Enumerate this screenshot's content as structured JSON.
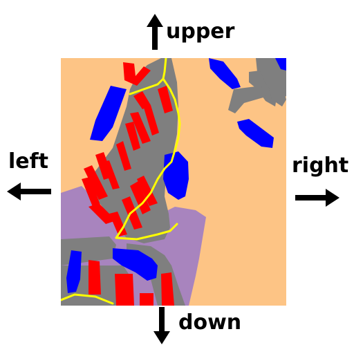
{
  "directions": {
    "upper": "upper",
    "left": "left",
    "right": "right",
    "down": "down"
  },
  "colors": {
    "background": "#ffffff",
    "land": "#fdc485",
    "residential": "#a884be",
    "road": "#7f7f7f",
    "path": "#ffff00",
    "building": "#ff0000",
    "water": "#0000ff",
    "arrow": "#000000"
  },
  "icons": {
    "upper": "arrow-up-icon",
    "left": "arrow-left-icon",
    "right": "arrow-right-icon",
    "down": "arrow-down-icon"
  }
}
